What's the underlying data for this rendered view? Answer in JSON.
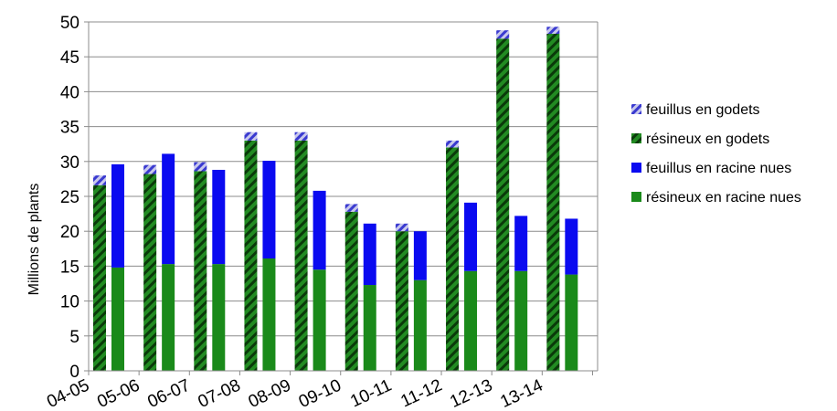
{
  "chart_data": {
    "type": "bar",
    "stacked": true,
    "title": "",
    "xlabel": "",
    "ylabel": "Millions de plants",
    "ylim": [
      0,
      50
    ],
    "yticks": [
      0,
      5,
      10,
      15,
      20,
      25,
      30,
      35,
      40,
      45,
      50
    ],
    "grid": "horizontal",
    "legend_position": "right",
    "categories": [
      "04-05",
      "05-06",
      "06-07",
      "07-08",
      "08-09",
      "09-10",
      "10-11",
      "11-12",
      "12-13",
      "13-14"
    ],
    "groups": [
      {
        "name": "godets",
        "series": [
          {
            "name": "résineux en godets",
            "color": "#1a7a1a",
            "pattern": "dark-diagonal-stripes",
            "values": [
              26.6,
              28.2,
              28.6,
              33.0,
              33.0,
              22.8,
              20.0,
              32.0,
              47.6,
              48.3
            ]
          },
          {
            "name": "feuillus en godets",
            "color": "#4040d0",
            "pattern": "light-diagonal-stripes",
            "values": [
              1.4,
              1.3,
              1.3,
              1.2,
              1.2,
              1.1,
              1.1,
              1.0,
              1.2,
              1.0
            ]
          }
        ]
      },
      {
        "name": "racine nues",
        "series": [
          {
            "name": "résineux en racine nues",
            "color": "#1a8a1a",
            "values": [
              14.8,
              15.3,
              15.3,
              16.1,
              14.5,
              12.3,
              13.0,
              14.3,
              14.3,
              13.8
            ]
          },
          {
            "name": "feuillus en racine nues",
            "color": "#0a0af0",
            "values": [
              14.8,
              15.8,
              13.5,
              14.0,
              11.3,
              8.8,
              7.0,
              9.8,
              7.9,
              8.0
            ]
          }
        ]
      }
    ],
    "legend": [
      "feuillus en godets",
      "résineux en godets",
      "feuillus en racine nues",
      "résineux en racine nues"
    ]
  }
}
